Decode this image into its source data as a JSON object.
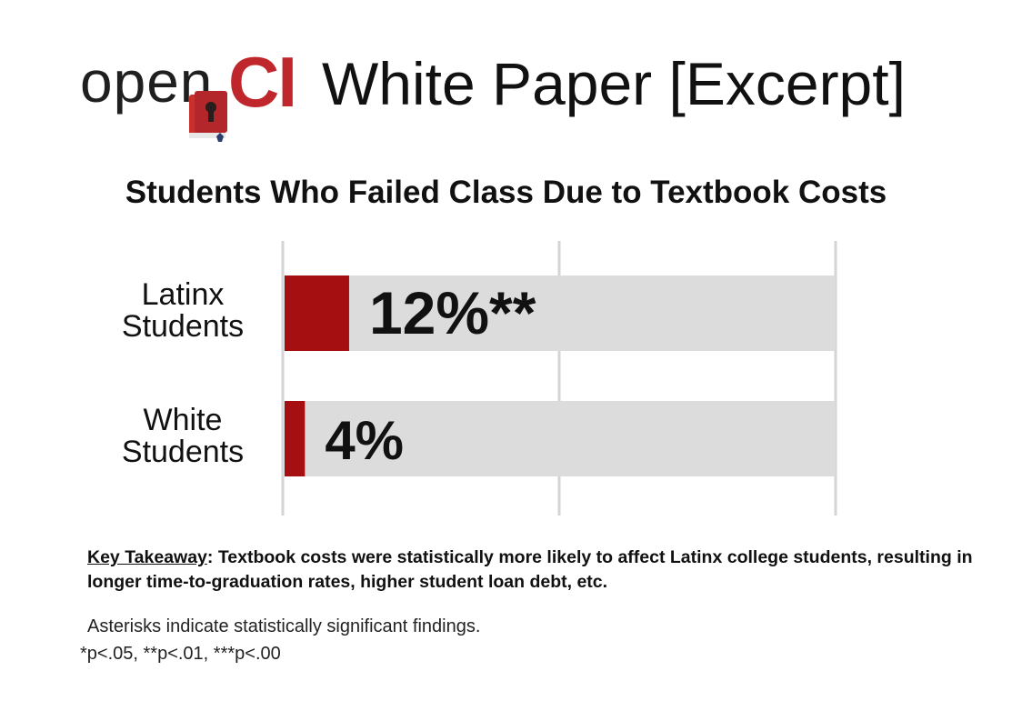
{
  "header": {
    "logo_word": "open",
    "logo_accent": "CI",
    "paper_title": "White Paper [Excerpt]"
  },
  "chart_data": {
    "type": "bar",
    "orientation": "horizontal",
    "title": "Students Who Failed Class Due to Textbook Costs",
    "categories": [
      [
        "Latinx",
        "Students"
      ],
      [
        "White",
        "Students"
      ]
    ],
    "values": [
      12,
      4
    ],
    "data_labels": [
      "12%**",
      "4%"
    ],
    "xlim": [
      0,
      100
    ],
    "gridlines": [
      0,
      50,
      100
    ],
    "grid": true,
    "legend": "none",
    "colors": {
      "bar": "#a50f11",
      "track": "#dcdcdc",
      "grid": "#d4d4d4"
    }
  },
  "takeaway": {
    "label": "Key Takeaway",
    "text": ": Textbook costs were statistically more likely to affect Latinx college students, resulting in longer time-to-graduation rates, higher student loan debt, etc."
  },
  "notes": {
    "line1": "Asterisks indicate statistically significant findings.",
    "line2": "*p<.05, **p<.01, ***p<.00"
  },
  "colors": {
    "brand_red": "#c0272d",
    "book": "#c9302c"
  }
}
